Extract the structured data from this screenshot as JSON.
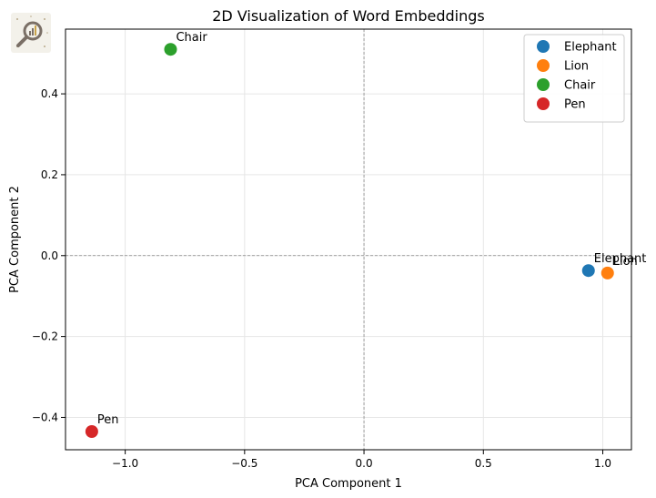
{
  "chart_data": {
    "type": "scatter",
    "title": "2D Visualization of Word Embeddings",
    "xlabel": "PCA Component 1",
    "ylabel": "PCA Component 2",
    "xlim": [
      -1.25,
      1.12
    ],
    "ylim": [
      -0.48,
      0.56
    ],
    "xticks": [
      -1.0,
      -0.5,
      0.0,
      0.5,
      1.0
    ],
    "xtick_labels": [
      "−1.0",
      "−0.5",
      "0.0",
      "0.5",
      "1.0"
    ],
    "yticks": [
      -0.4,
      -0.2,
      0.0,
      0.2,
      0.4
    ],
    "ytick_labels": [
      "−0.4",
      "−0.2",
      "0.0",
      "0.2",
      "0.4"
    ],
    "grid": true,
    "reference_lines": {
      "x": 0,
      "y": 0
    },
    "legend_position": "top-right",
    "series": [
      {
        "name": "Elephant",
        "color": "#1f77b4",
        "x": 0.94,
        "y": -0.037
      },
      {
        "name": "Lion",
        "color": "#ff7f0e",
        "x": 1.02,
        "y": -0.043
      },
      {
        "name": "Chair",
        "color": "#2ca02c",
        "x": -0.81,
        "y": 0.51
      },
      {
        "name": "Pen",
        "color": "#d62728",
        "x": -1.14,
        "y": -0.435
      }
    ]
  },
  "logo": {
    "icon": "magnifier-chart-logo-icon"
  }
}
